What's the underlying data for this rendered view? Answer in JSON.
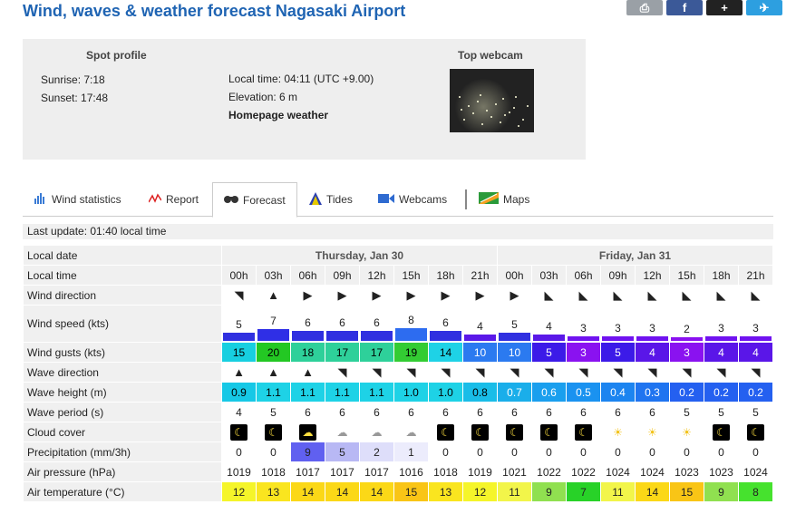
{
  "title": "Wind, waves & weather forecast Nagasaki Airport",
  "share": {
    "print": "⎙",
    "facebook": "f",
    "plus": "+",
    "twitter": "✈"
  },
  "spot": {
    "heading": "Spot profile",
    "sunrise": "Sunrise: 7:18",
    "sunset": "Sunset: 17:48",
    "local_time": "Local time: 04:11 (UTC +9.00)",
    "elevation": "Elevation: 6 m",
    "homepage": "Homepage weather",
    "webcam_heading": "Top webcam"
  },
  "tabs": [
    {
      "label": "Wind statistics",
      "icon": "bar-chart-icon"
    },
    {
      "label": "Report",
      "icon": "zigzag-icon"
    },
    {
      "label": "Forecast",
      "icon": "binoculars-icon"
    },
    {
      "label": "Tides",
      "icon": "tide-icon"
    },
    {
      "label": "Webcams",
      "icon": "camera-icon"
    },
    {
      "label": "Maps",
      "icon": "map-icon"
    }
  ],
  "last_update": "Last update: 01:40 local time",
  "labels": {
    "local_date": "Local date",
    "local_time": "Local time",
    "wind_direction": "Wind direction",
    "wind_speed": "Wind speed (kts)",
    "wind_gusts": "Wind gusts (kts)",
    "wave_direction": "Wave direction",
    "wave_height": "Wave height (m)",
    "wave_period": "Wave period (s)",
    "cloud_cover": "Cloud cover",
    "precipitation": "Precipitation (mm/3h)",
    "air_pressure": "Air pressure (hPa)",
    "air_temperature": "Air temperature (°C)"
  },
  "days": [
    "Thursday, Jan 30",
    "Friday, Jan 31"
  ],
  "hours": [
    "00h",
    "03h",
    "06h",
    "09h",
    "12h",
    "15h",
    "18h",
    "21h",
    "00h",
    "03h",
    "06h",
    "09h",
    "12h",
    "15h",
    "18h",
    "21h"
  ],
  "wind_dir_arrows": [
    "◥",
    "▲",
    "▶",
    "▶",
    "▶",
    "▶",
    "▶",
    "▶",
    "▶",
    "◣",
    "◣",
    "◣",
    "◣",
    "◣",
    "◣",
    "◣"
  ],
  "wind_speed": [
    5,
    7,
    6,
    6,
    6,
    8,
    6,
    4,
    5,
    4,
    3,
    3,
    3,
    2,
    3,
    3
  ],
  "wind_speed_colors": [
    "#3030e0",
    "#2f2fe6",
    "#3030e0",
    "#3030e0",
    "#3030e0",
    "#2d6cf0",
    "#3030e0",
    "#5a18e8",
    "#3030e0",
    "#5a18e8",
    "#7012f0",
    "#7012f0",
    "#7012f0",
    "#8a10f0",
    "#7012f0",
    "#7012f0"
  ],
  "wind_gusts": [
    15,
    20,
    18,
    17,
    17,
    19,
    14,
    10,
    10,
    5,
    3,
    5,
    4,
    3,
    4,
    4
  ],
  "wind_gusts_colors": [
    "#17cfe0",
    "#23c823",
    "#2ed09a",
    "#2ed09a",
    "#2ed09a",
    "#33cc33",
    "#1ed2e6",
    "#2b7af0",
    "#2b7af0",
    "#3c1ae8",
    "#8a12f0",
    "#3c1ae8",
    "#5a16e8",
    "#8a12f0",
    "#5a16e8",
    "#5a16e8"
  ],
  "wave_dir_arrows": [
    "▲",
    "▲",
    "▲",
    "◥",
    "◥",
    "◥",
    "◥",
    "◥",
    "◥",
    "◥",
    "◥",
    "◥",
    "◥",
    "◥",
    "◥",
    "◥"
  ],
  "wave_height": [
    "0.9",
    "1.1",
    "1.1",
    "1.1",
    "1.1",
    "1.0",
    "1.0",
    "0.8",
    "0.7",
    "0.6",
    "0.5",
    "0.4",
    "0.3",
    "0.2",
    "0.2",
    "0.2"
  ],
  "wave_height_colors": [
    "#16c8e6",
    "#1ed2e6",
    "#1ed2e6",
    "#1ed2e6",
    "#1ed2e6",
    "#1ed2e6",
    "#1ed2e6",
    "#19bde8",
    "#1aaeea",
    "#1a9fee",
    "#1a92f0",
    "#1c84f0",
    "#1f74f0",
    "#2460f0",
    "#2460f0",
    "#2460f0"
  ],
  "wave_period": [
    4,
    5,
    6,
    6,
    6,
    6,
    6,
    6,
    6,
    6,
    6,
    6,
    6,
    5,
    5,
    5
  ],
  "cloud_cover": [
    "night",
    "night",
    "night-cloud",
    "cloud",
    "cloud",
    "cloud",
    "night",
    "night",
    "night",
    "night",
    "moon",
    "sun",
    "sun",
    "sun",
    "moon",
    "moon"
  ],
  "precipitation": [
    0,
    0,
    9,
    5,
    2,
    1,
    0,
    0,
    0,
    0,
    0,
    0,
    0,
    0,
    0,
    0
  ],
  "precipitation_colors": [
    "#fff",
    "#fff",
    "#6060f0",
    "#b8b8f4",
    "#dedefa",
    "#ececfc",
    "#fff",
    "#fff",
    "#fff",
    "#fff",
    "#fff",
    "#fff",
    "#fff",
    "#fff",
    "#fff",
    "#fff"
  ],
  "air_pressure": [
    1019,
    1018,
    1017,
    1017,
    1017,
    1016,
    1018,
    1019,
    1021,
    1022,
    1022,
    1024,
    1024,
    1023,
    1023,
    1024
  ],
  "air_temperature": [
    12,
    13,
    14,
    14,
    14,
    15,
    13,
    12,
    11,
    9,
    7,
    11,
    14,
    15,
    9,
    8
  ],
  "air_temperature_colors": [
    "#f5f52a",
    "#fae51f",
    "#fbd817",
    "#fbd817",
    "#fbd817",
    "#f9c516",
    "#fae51f",
    "#f5f52a",
    "#f2f54a",
    "#90e050",
    "#28d228",
    "#f2f54a",
    "#fbd817",
    "#f9c516",
    "#90e050",
    "#46e22e"
  ]
}
